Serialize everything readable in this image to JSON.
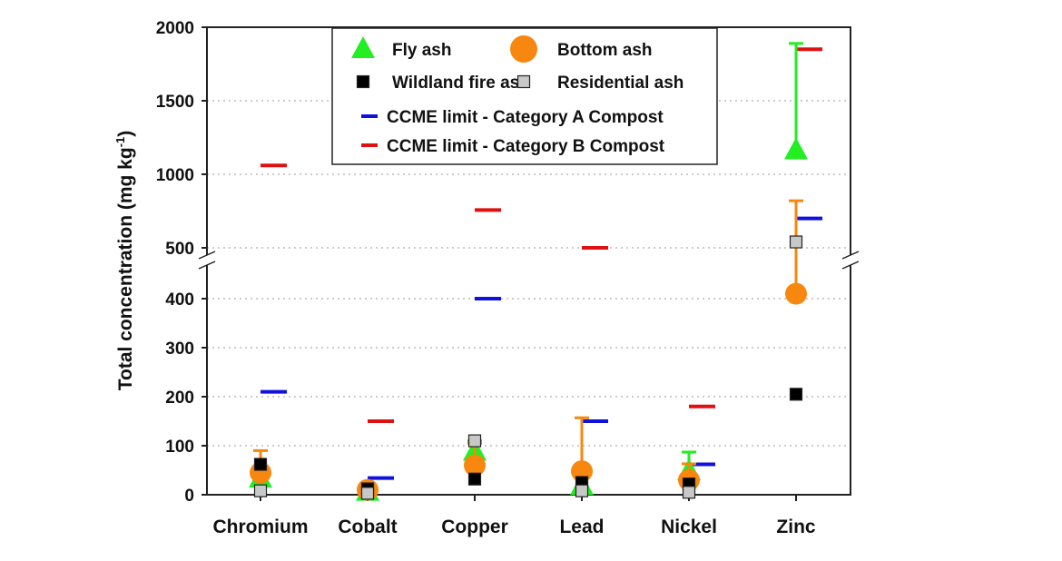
{
  "chart_data": {
    "type": "scatter",
    "ylabel": "Total concentration (mg kg-1)",
    "ylabel_main": "Total concentration (mg kg",
    "ylabel_sup": "-1",
    "ylabel_close": ")",
    "categories": [
      "Chromium",
      "Cobalt",
      "Copper",
      "Lead",
      "Nickel",
      "Zinc"
    ],
    "y_break": [
      450,
      500
    ],
    "ylim_lower": [
      0,
      450
    ],
    "ylim_upper": [
      500,
      2000
    ],
    "yticks_lower": [
      "0",
      "100",
      "200",
      "300",
      "400"
    ],
    "yticks_upper": [
      "500",
      "1000",
      "1500",
      "2000"
    ],
    "grid": true,
    "legend_position": "top-center",
    "series": [
      {
        "name": "Fly ash",
        "marker": "triangle",
        "color": "#22ee22",
        "values": [
          35,
          8,
          90,
          20,
          50,
          1170
        ],
        "err_upper": [
          null,
          null,
          110,
          null,
          87,
          1890
        ]
      },
      {
        "name": "Bottom ash",
        "marker": "circle",
        "color": "#f7870f",
        "values": [
          45,
          10,
          60,
          48,
          30,
          410
        ],
        "err_upper": [
          90,
          null,
          105,
          157,
          63,
          820
        ]
      },
      {
        "name": "Wildland fire ash",
        "marker": "square",
        "color": "#000000",
        "values": [
          62,
          12,
          32,
          25,
          22,
          205
        ]
      },
      {
        "name": "Residential ash",
        "marker": "square",
        "color": "#c8c8c8",
        "values": [
          8,
          3,
          110,
          8,
          5,
          540
        ]
      },
      {
        "name": "CCME limit - Category A Compost",
        "marker": "hline",
        "color": "#1010e0",
        "values": [
          210,
          34,
          400,
          150,
          62,
          700
        ]
      },
      {
        "name": "CCME limit - Category B Compost",
        "marker": "hline",
        "color": "#e01010",
        "values": [
          1060,
          150,
          757,
          500,
          180,
          1850
        ]
      }
    ]
  }
}
